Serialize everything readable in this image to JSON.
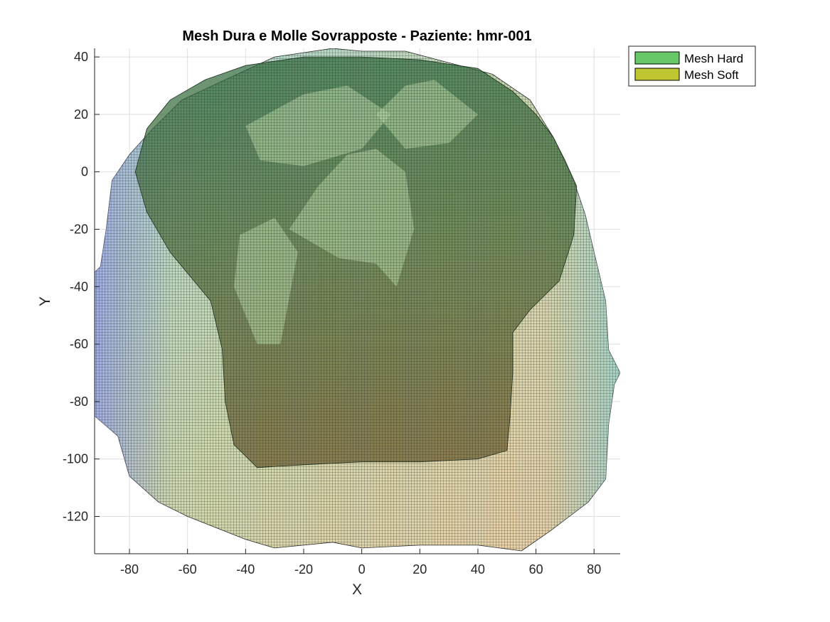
{
  "chart_data": {
    "type": "mesh-overlay",
    "title": "Mesh Dura e Molle Sovrapposte - Paziente: hmr-001",
    "xlabel": "X",
    "ylabel": "Y",
    "xlim": [
      -92,
      89
    ],
    "ylim": [
      -133,
      43
    ],
    "xticks": [
      -80,
      -60,
      -40,
      -20,
      0,
      20,
      40,
      60,
      80
    ],
    "yticks": [
      40,
      20,
      0,
      -20,
      -40,
      -60,
      -80,
      -100,
      -120
    ],
    "grid": true,
    "legend_position": "top-right",
    "series": [
      {
        "name": "Mesh Hard",
        "color": "#66c866"
      },
      {
        "name": "Mesh Soft",
        "color": "#bfc630"
      }
    ],
    "soft_outline": [
      [
        -92,
        -35
      ],
      [
        -92,
        -50
      ],
      [
        -92,
        -85
      ],
      [
        -84,
        -92
      ],
      [
        -80,
        -106
      ],
      [
        -70,
        -115
      ],
      [
        -60,
        -120
      ],
      [
        -40,
        -128
      ],
      [
        -30,
        -131
      ],
      [
        -10,
        -129
      ],
      [
        0,
        -131
      ],
      [
        20,
        -130
      ],
      [
        40,
        -130
      ],
      [
        55,
        -132
      ],
      [
        65,
        -125
      ],
      [
        78,
        -115
      ],
      [
        84,
        -107
      ],
      [
        85,
        -88
      ],
      [
        87,
        -74
      ],
      [
        89,
        -70
      ],
      [
        85,
        -62
      ],
      [
        84,
        -45
      ],
      [
        80,
        -28
      ],
      [
        77,
        -15
      ],
      [
        73,
        -3
      ],
      [
        66,
        12
      ],
      [
        58,
        25
      ],
      [
        45,
        34
      ],
      [
        30,
        38
      ],
      [
        15,
        42
      ],
      [
        0,
        42
      ],
      [
        -10,
        43
      ],
      [
        -30,
        40
      ],
      [
        -45,
        33
      ],
      [
        -62,
        25
      ],
      [
        -72,
        15
      ],
      [
        -80,
        6
      ],
      [
        -86,
        -3
      ],
      [
        -88,
        -20
      ],
      [
        -90,
        -33
      ]
    ],
    "hard_outline": [
      [
        -78,
        0
      ],
      [
        -74,
        15
      ],
      [
        -66,
        25
      ],
      [
        -54,
        32
      ],
      [
        -40,
        37
      ],
      [
        -20,
        40
      ],
      [
        0,
        40
      ],
      [
        20,
        39
      ],
      [
        40,
        36
      ],
      [
        52,
        28
      ],
      [
        60,
        20
      ],
      [
        66,
        12
      ],
      [
        70,
        4
      ],
      [
        74,
        -5
      ],
      [
        73,
        -22
      ],
      [
        68,
        -38
      ],
      [
        58,
        -48
      ],
      [
        52,
        -56
      ],
      [
        52,
        -70
      ],
      [
        51,
        -86
      ],
      [
        50,
        -97
      ],
      [
        40,
        -100
      ],
      [
        20,
        -101
      ],
      [
        0,
        -101
      ],
      [
        -20,
        -102
      ],
      [
        -36,
        -103
      ],
      [
        -44,
        -95
      ],
      [
        -47,
        -80
      ],
      [
        -48,
        -62
      ],
      [
        -52,
        -45
      ],
      [
        -66,
        -28
      ],
      [
        -74,
        -14
      ]
    ]
  }
}
